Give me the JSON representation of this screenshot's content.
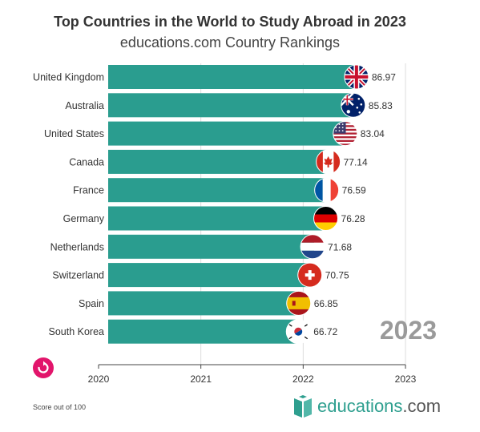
{
  "header": {
    "title": "Top Countries in the World to Study Abroad in 2023",
    "subtitle": "educations.com Country Rankings"
  },
  "caption": "Score out of 100",
  "logo": {
    "name": "educations",
    "suffix": ".com"
  },
  "colors": {
    "bar": "#2a9d8f",
    "replay": "#e2156b",
    "year_label": "#9a9a9a",
    "logo": "#2e9f8f"
  },
  "chart_data": {
    "type": "bar",
    "orientation": "horizontal",
    "year_label": "2023",
    "categories": [
      "United Kingdom",
      "Australia",
      "United States",
      "Canada",
      "France",
      "Germany",
      "Netherlands",
      "Switzerland",
      "Spain",
      "South Korea"
    ],
    "values": [
      86.97,
      85.83,
      83.04,
      77.14,
      76.59,
      76.28,
      71.68,
      70.75,
      66.85,
      66.72
    ],
    "value_labels": [
      "86.97",
      "85.83",
      "83.04",
      "77.14",
      "76.59",
      "76.28",
      "71.68",
      "70.75",
      "66.85",
      "66.72"
    ],
    "flags": [
      "uk-flag-icon",
      "australia-flag-icon",
      "usa-flag-icon",
      "canada-flag-icon",
      "france-flag-icon",
      "germany-flag-icon",
      "netherlands-flag-icon",
      "switzerland-flag-icon",
      "spain-flag-icon",
      "south-korea-flag-icon"
    ],
    "timeline": {
      "ticks": [
        "2020",
        "2021",
        "2022",
        "2023"
      ],
      "current": 2022.72
    },
    "xlim": [
      0,
      100
    ],
    "grid": true
  }
}
